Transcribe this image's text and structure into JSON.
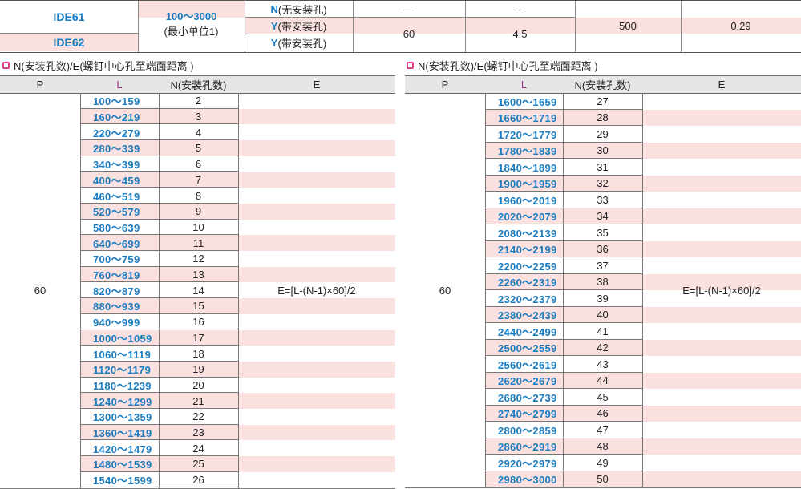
{
  "top_table": {
    "models": [
      "IDE61",
      "IDE62"
    ],
    "length_range": "100～3000",
    "length_unit": "(最小单位1)",
    "types": [
      {
        "letter": "N",
        "text": "(无安装孔)"
      },
      {
        "letter": "Y",
        "text": "(带安装孔)"
      },
      {
        "letter": "Y",
        "text": "(带安装孔)"
      }
    ],
    "col4_top": "—",
    "col5_top": "—",
    "col4_bottom": "60",
    "col5_bottom": "4.5",
    "col6": "500",
    "col7": "0.29"
  },
  "left_section": {
    "title": "N(安装孔数)/E(螺钉中心孔至端面距离 )",
    "headers": {
      "p": "P",
      "l": "L",
      "n": "N(安装孔数)",
      "e": "E"
    },
    "p_value": "60",
    "formula": "E=[L-(N-1)×60]/2",
    "rows": [
      {
        "l": "100～159",
        "n": "2"
      },
      {
        "l": "160～219",
        "n": "3"
      },
      {
        "l": "220～279",
        "n": "4"
      },
      {
        "l": "280～339",
        "n": "5"
      },
      {
        "l": "340～399",
        "n": "6"
      },
      {
        "l": "400～459",
        "n": "7"
      },
      {
        "l": "460～519",
        "n": "8"
      },
      {
        "l": "520～579",
        "n": "9"
      },
      {
        "l": "580～639",
        "n": "10"
      },
      {
        "l": "640～699",
        "n": "11"
      },
      {
        "l": "700～759",
        "n": "12"
      },
      {
        "l": "760～819",
        "n": "13"
      },
      {
        "l": "820～879",
        "n": "14"
      },
      {
        "l": "880～939",
        "n": "15"
      },
      {
        "l": "940～999",
        "n": "16"
      },
      {
        "l": "1000～1059",
        "n": "17"
      },
      {
        "l": "1060～1119",
        "n": "18"
      },
      {
        "l": "1120～1179",
        "n": "19"
      },
      {
        "l": "1180～1239",
        "n": "20"
      },
      {
        "l": "1240～1299",
        "n": "21"
      },
      {
        "l": "1300～1359",
        "n": "22"
      },
      {
        "l": "1360～1419",
        "n": "23"
      },
      {
        "l": "1420～1479",
        "n": "24"
      },
      {
        "l": "1480～1539",
        "n": "25"
      },
      {
        "l": "1540～1599",
        "n": "26"
      }
    ]
  },
  "right_section": {
    "title": "N(安装孔数)/E(螺钉中心孔至端面距离 )",
    "headers": {
      "p": "P",
      "l": "L",
      "n": "N(安装孔数)",
      "e": "E"
    },
    "p_value": "60",
    "formula": "E=[L-(N-1)×60]/2",
    "rows": [
      {
        "l": "1600～1659",
        "n": "27"
      },
      {
        "l": "1660～1719",
        "n": "28"
      },
      {
        "l": "1720～1779",
        "n": "29"
      },
      {
        "l": "1780～1839",
        "n": "30"
      },
      {
        "l": "1840～1899",
        "n": "31"
      },
      {
        "l": "1900～1959",
        "n": "32"
      },
      {
        "l": "1960～2019",
        "n": "33"
      },
      {
        "l": "2020～2079",
        "n": "34"
      },
      {
        "l": "2080～2139",
        "n": "35"
      },
      {
        "l": "2140～2199",
        "n": "36"
      },
      {
        "l": "2200～2259",
        "n": "37"
      },
      {
        "l": "2260～2319",
        "n": "38"
      },
      {
        "l": "2320～2379",
        "n": "39"
      },
      {
        "l": "2380～2439",
        "n": "40"
      },
      {
        "l": "2440～2499",
        "n": "41"
      },
      {
        "l": "2500～2559",
        "n": "42"
      },
      {
        "l": "2560～2619",
        "n": "43"
      },
      {
        "l": "2620～2679",
        "n": "44"
      },
      {
        "l": "2680～2739",
        "n": "45"
      },
      {
        "l": "2740～2799",
        "n": "46"
      },
      {
        "l": "2800～2859",
        "n": "47"
      },
      {
        "l": "2860～2919",
        "n": "48"
      },
      {
        "l": "2920～2979",
        "n": "49"
      },
      {
        "l": "2980～3000",
        "n": "50"
      }
    ]
  },
  "colors": {
    "accent_blue": "#1a7cc0",
    "row_pink": "#fbe0e0",
    "bullet": "#e0408a",
    "l_header": "#a0308a"
  }
}
